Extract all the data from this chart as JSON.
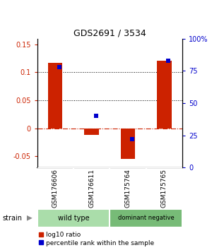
{
  "title": "GDS2691 / 3534",
  "samples": [
    "GSM176606",
    "GSM176611",
    "GSM175764",
    "GSM175765"
  ],
  "log10_ratio": [
    0.117,
    -0.012,
    -0.055,
    0.121
  ],
  "percentile_rank": [
    0.78,
    0.4,
    0.22,
    0.83
  ],
  "groups": [
    {
      "label": "wild type",
      "color": "#aaddaa",
      "samples": [
        0,
        1
      ]
    },
    {
      "label": "dominant negative",
      "color": "#77bb77",
      "samples": [
        2,
        3
      ]
    }
  ],
  "ylim_left": [
    -0.07,
    0.16
  ],
  "ylim_right": [
    0.0,
    1.0
  ],
  "yticks_left": [
    -0.05,
    0,
    0.05,
    0.1,
    0.15
  ],
  "yticks_right": [
    0.0,
    0.25,
    0.5,
    0.75,
    1.0
  ],
  "ytick_labels_left": [
    "-0.05",
    "0",
    "0.05",
    "0.1",
    "0.15"
  ],
  "ytick_labels_right": [
    "0",
    "25",
    "50",
    "75",
    "100%"
  ],
  "bar_color": "#CC2200",
  "dot_color": "#0000CC",
  "legend_items": [
    "log10 ratio",
    "percentile rank within the sample"
  ],
  "background_color": "#ffffff",
  "strain_label": "strain",
  "label_box_color": "#C8C8C8",
  "label_box_divider": "#ffffff"
}
